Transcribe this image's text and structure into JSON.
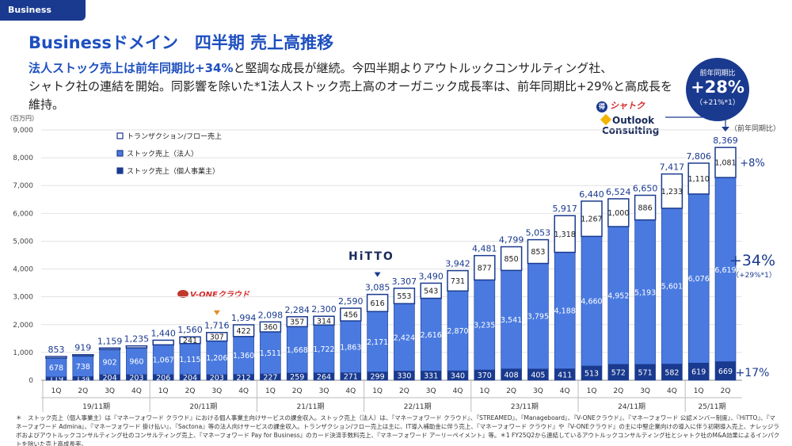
{
  "header": {
    "domain_tag": "Business domain",
    "title": "Businessドメイン　四半期 売上高推移"
  },
  "lead": {
    "highlight": "法人ストック売上は前年同期比+34%",
    "line1_rest": "と堅調な成長が継続。今四半期よりアウトルックコンサルティング社、",
    "line2": "シャトク社の連結を開始。同影響を除いた*1法人ストック売上高のオーガニック成長率は、前年同期比+29%と高成長を維持。"
  },
  "badge": {
    "label": "前年同期比",
    "value": "+28%",
    "sub": "（+21%*1）"
  },
  "logos": {
    "vone": "V-ONEクラウド",
    "hitto": "HiTTO",
    "shatoku": "シャトク",
    "shatoku_mark": "得",
    "outlook": "Outlook",
    "consulting": "Consulting"
  },
  "chart_data": {
    "type": "bar",
    "stacked": true,
    "unit_label": "（百万円）",
    "ylim": [
      0,
      9000
    ],
    "yticks": [
      "0",
      "1,000",
      "2,000",
      "3,000",
      "4,000",
      "5,000",
      "6,000",
      "7,000",
      "8,000",
      "9,000"
    ],
    "legend_position": "top-left",
    "categories": [
      "1Q",
      "2Q",
      "3Q",
      "4Q",
      "1Q",
      "2Q",
      "3Q",
      "4Q",
      "1Q",
      "2Q",
      "3Q",
      "4Q",
      "1Q",
      "2Q",
      "3Q",
      "4Q",
      "1Q",
      "2Q",
      "3Q",
      "4Q",
      "1Q",
      "2Q",
      "3Q",
      "4Q",
      "1Q",
      "2Q"
    ],
    "fiscal_years": [
      {
        "label": "19/11期",
        "count": 4
      },
      {
        "label": "20/11期",
        "count": 4
      },
      {
        "label": "21/11期",
        "count": 4
      },
      {
        "label": "22/11期",
        "count": 4
      },
      {
        "label": "23/11期",
        "count": 4
      },
      {
        "label": "24/11期",
        "count": 4
      },
      {
        "label": "25/11期",
        "count": 2
      }
    ],
    "series": [
      {
        "name": "ストック売上（個人事業主）",
        "color": "#1a3a8f",
        "values": [
          119,
          134,
          204,
          203,
          206,
          204,
          203,
          212,
          227,
          259,
          264,
          271,
          299,
          330,
          331,
          340,
          370,
          408,
          405,
          411,
          513,
          572,
          571,
          582,
          619,
          669
        ]
      },
      {
        "name": "ストック売上（法人）",
        "color": "#4a7ae0",
        "values": [
          678,
          738,
          902,
          960,
          1067,
          1115,
          1206,
          1360,
          1511,
          1668,
          1722,
          1863,
          2171,
          2424,
          2616,
          2870,
          3235,
          3541,
          3795,
          4188,
          4660,
          4952,
          5193,
          5601,
          6076,
          6619
        ]
      },
      {
        "name": "トランザクション/フロー売上",
        "color": "#ffffff",
        "values": [
          56,
          47,
          53,
          72,
          167,
          241,
          307,
          422,
          360,
          357,
          314,
          456,
          616,
          553,
          543,
          731,
          877,
          850,
          853,
          1318,
          1267,
          1000,
          886,
          1233,
          1110,
          1081
        ]
      }
    ],
    "totals": [
      "853",
      "919",
      "1,159",
      "1,235",
      "1,440",
      "1,560",
      "1,716",
      "1,994",
      "2,098",
      "2,284",
      "2,300",
      "2,590",
      "3,085",
      "3,307",
      "3,490",
      "3,942",
      "4,481",
      "4,799",
      "5,053",
      "5,917",
      "6,440",
      "6,524",
      "6,650",
      "7,417",
      "7,806",
      "8,369"
    ],
    "segment_labels": [
      [
        "119",
        "134",
        "204",
        "203",
        "206",
        "204",
        "203",
        "212",
        "227",
        "259",
        "264",
        "271",
        "299",
        "330",
        "331",
        "340",
        "370",
        "408",
        "405",
        "411",
        "513",
        "572",
        "571",
        "582",
        "619",
        "669"
      ],
      [
        "678",
        "738",
        "902",
        "960",
        "1,067",
        "1,115",
        "1,206",
        "1,360",
        "1,511",
        "1,668",
        "1,722",
        "1,863",
        "2,171",
        "2,424",
        "2,616",
        "2,870",
        "3,235",
        "3,541",
        "3,795",
        "4,188",
        "4,660",
        "4,952",
        "5,193",
        "5,601",
        "6,076",
        "6,619"
      ],
      [
        "",
        "",
        "",
        "",
        "",
        "241",
        "307",
        "422",
        "360",
        "357",
        "314",
        "456",
        "616",
        "553",
        "543",
        "731",
        "877",
        "850",
        "853",
        "1,318",
        "1,267",
        "1,000",
        "886",
        "1,233",
        "1,110",
        "1,081"
      ]
    ],
    "yoy_header": "（前年同期比）",
    "yoy_labels": [
      {
        "text": "+8%",
        "series": 2
      },
      {
        "text": "+34%",
        "sub": "（+29%*1）",
        "series": 1
      },
      {
        "text": "+17%",
        "series": 0
      }
    ]
  },
  "footnote": "＊　ストック売上（個人事業主）は『マネーフォワード クラウド』における個人事業主向けサービスの課金収入。ストック売上（法人）は、『マネーフォワード クラウド』、『STREAMED』、『Manageboard』、『V-ONEクラウド』、『マネーフォワード 公認メンバー制度』、『HiTTO』、『マネーフォワード Admina』、『マネーフォワード 掛け払い』、『Sactona』等の法人向けサービスの課金収入。トランザクション/フロー売上は主に、IT導入補助金に伴う売上、『マネーフォワード クラウド』や『V-ONEクラウド』の主に中堅企業向けの導入に伴う初期導入売上、ナレッジラボおよびアウトルックコンサルティング社のコンサルティング売上、『マネーフォワード Pay for Business』のカード決済手数料売上、『マネーフォワード アーリーペイメント』等。＊1 FY25Q2から連結しているアウトルックコンサルティング社とシャトク社のM&A効果によるインパクトを除いた売上高成長率。"
}
